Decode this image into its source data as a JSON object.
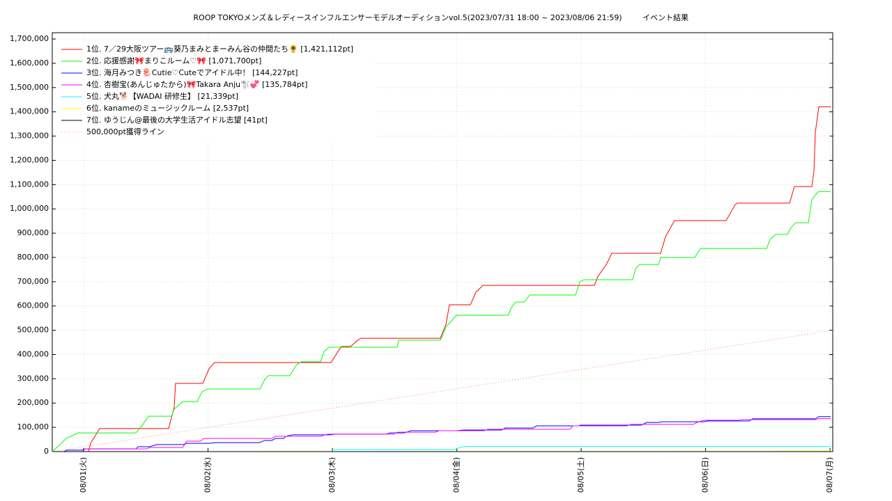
{
  "chart_data": {
    "type": "line",
    "title": "ROOP TOKYOメンズ＆レディースインフルエンサーモデルオーディションvol.5(2023/07/31 18:00 ~ 2023/08/06 21:59)",
    "subtitle": "イベント結果",
    "xlim": [
      0.748,
      7.022
    ],
    "xticks": [
      {
        "value": 1,
        "label": "08/01(火)"
      },
      {
        "value": 2,
        "label": "08/02(水)"
      },
      {
        "value": 3,
        "label": "08/03(木)"
      },
      {
        "value": 4,
        "label": "08/04(金)"
      },
      {
        "value": 5,
        "label": "08/05(土)"
      },
      {
        "value": 6,
        "label": "08/06(日)"
      },
      {
        "value": 7,
        "label": "08/07(月)"
      }
    ],
    "ylim": [
      0,
      1726000
    ],
    "yticks": [
      0,
      {
        "value": 100000,
        "label": "100,000"
      },
      {
        "value": 200000,
        "label": "200,000"
      },
      {
        "value": 300000,
        "label": "300,000"
      },
      {
        "value": 400000,
        "label": "400,000"
      },
      {
        "value": 500000,
        "label": "500,000"
      },
      {
        "value": 600000,
        "label": "600,000"
      },
      {
        "value": 700000,
        "label": "700,000"
      },
      {
        "value": 800000,
        "label": "800,000"
      },
      {
        "value": 900000,
        "label": "900,000"
      },
      {
        "value": 1000000,
        "label": "1,000,000"
      },
      {
        "value": 1100000,
        "label": "1,100,000"
      },
      {
        "value": 1200000,
        "label": "1,200,000"
      },
      {
        "value": 1300000,
        "label": "1,300,000"
      },
      {
        "value": 1400000,
        "label": "1,400,000"
      },
      {
        "value": 1500000,
        "label": "1,500,000"
      },
      {
        "value": 1600000,
        "label": "1,600,000"
      },
      {
        "value": 1700000,
        "label": "1,700,000"
      }
    ],
    "grid": true,
    "legend": "upper left",
    "series": [
      {
        "name": "1位. 7／29大阪ツアー🚌葵乃まみとまーみん谷の仲間たち🌻 [1,421,112pt]",
        "color": "#ff0000",
        "x": [
          0.748,
          1.039,
          1.056,
          1.129,
          1.683,
          1.728,
          1.739,
          1.958,
          2.008,
          2.053,
          2.989,
          3.045,
          3.073,
          3.146,
          3.196,
          3.23,
          3.868,
          3.913,
          3.941,
          4.109,
          4.154,
          4.21,
          5.106,
          5.134,
          5.202,
          5.246,
          5.638,
          5.678,
          5.75,
          6.165,
          6.238,
          6.255,
          6.675,
          6.714,
          6.854,
          6.871,
          6.882,
          6.91,
          7.005
        ],
        "values": [
          0,
          0,
          34000,
          95000,
          95000,
          183000,
          281000,
          281000,
          341000,
          367000,
          367000,
          413000,
          433000,
          433000,
          456000,
          467000,
          467000,
          525000,
          605000,
          605000,
          657000,
          685000,
          685000,
          722000,
          771000,
          817000,
          817000,
          886000,
          952000,
          952000,
          1018000,
          1024000,
          1024000,
          1092000,
          1092000,
          1158000,
          1316000,
          1421112,
          1421112
        ]
      },
      {
        "name": "2位. 応援感謝🎀まりこルーム♡🎀 [1,071,700pt]",
        "color": "#00ff00",
        "x": [
          0.748,
          0.804,
          0.86,
          0.955,
          1.42,
          1.476,
          1.521,
          1.706,
          1.728,
          1.796,
          1.913,
          1.952,
          1.997,
          2.417,
          2.457,
          2.485,
          2.658,
          2.709,
          2.748,
          2.905,
          2.933,
          2.972,
          3.521,
          3.532,
          3.868,
          3.913,
          3.997,
          4.412,
          4.445,
          4.473,
          4.541,
          4.585,
          4.955,
          4.989,
          5.022,
          5.414,
          5.437,
          5.47,
          5.622,
          5.638,
          5.913,
          5.958,
          6.49,
          6.518,
          6.563,
          6.658,
          6.686,
          6.725,
          6.826,
          6.854,
          6.893,
          6.91,
          7.005
        ],
        "values": [
          0,
          26000,
          54000,
          77000,
          77000,
          112000,
          146000,
          146000,
          175000,
          206000,
          206000,
          247000,
          258000,
          258000,
          298000,
          313000,
          313000,
          356000,
          370000,
          370000,
          413000,
          430000,
          430000,
          459000,
          459000,
          513000,
          562000,
          562000,
          599000,
          616000,
          616000,
          645000,
          645000,
          700000,
          708000,
          708000,
          754000,
          771000,
          771000,
          800000,
          800000,
          837000,
          837000,
          874000,
          895000,
          895000,
          923000,
          943000,
          943000,
          1038000,
          1064000,
          1071700,
          1071700
        ]
      },
      {
        "name": "3位. 海月みつき🪼Cutie♡Cuteでアイドル中！ [144,227pt]",
        "color": "#0000ff",
        "x": [
          0.748,
          0.843,
          0.866,
          0.989,
          1.011,
          1.42,
          1.437,
          1.532,
          1.588,
          1.801,
          1.829,
          2.008,
          2.064,
          2.412,
          2.457,
          2.513,
          2.541,
          2.608,
          2.625,
          2.681,
          2.989,
          3.017,
          3.437,
          3.465,
          3.577,
          3.633,
          3.997,
          4.053,
          4.361,
          4.389,
          4.613,
          4.641,
          4.977,
          4.994,
          5.482,
          5.526,
          5.622,
          5.65,
          5.986,
          6.014,
          6.35,
          6.378,
          6.882,
          6.91,
          7.005
        ],
        "values": [
          0,
          0,
          6000,
          6000,
          11000,
          11000,
          20000,
          20000,
          29000,
          29000,
          34000,
          34000,
          37000,
          37000,
          46000,
          46000,
          54000,
          54000,
          63000,
          69000,
          69000,
          72000,
          72000,
          77000,
          77000,
          86000,
          86000,
          89000,
          89000,
          97000,
          97000,
          106000,
          106000,
          109000,
          109000,
          120000,
          120000,
          123000,
          123000,
          126000,
          126000,
          135000,
          135000,
          144227,
          144227
        ]
      },
      {
        "name": "4位. 杏樹宝(あんじゅたから)🎀Takara Anju🐩💞 [135,784pt]",
        "color": "#ff00ff",
        "x": [
          0.748,
          0.989,
          1.011,
          1.504,
          1.532,
          1.796,
          1.829,
          1.941,
          1.964,
          2.513,
          2.541,
          2.905,
          2.961,
          3.493,
          3.521,
          3.829,
          3.857,
          4.221,
          4.249,
          4.91,
          4.933,
          5.37,
          5.398,
          5.902,
          5.93,
          5.986,
          6.266,
          6.294,
          6.882,
          6.91,
          7.005
        ],
        "values": [
          0,
          0,
          11000,
          11000,
          17000,
          17000,
          43000,
          43000,
          54000,
          54000,
          63000,
          63000,
          72000,
          72000,
          80000,
          80000,
          86000,
          86000,
          92000,
          92000,
          106000,
          106000,
          112000,
          112000,
          120000,
          129000,
          129000,
          132000,
          132000,
          135784,
          135784
        ]
      },
      {
        "name": "5位. 犬丸🐕【WADAI 研修生】 [21,339pt]",
        "color": "#00ffff",
        "x": [
          0.748,
          2.989,
          3.006,
          3.98,
          4.025,
          4.081,
          7.005
        ],
        "values": [
          0,
          0,
          8600,
          8600,
          17000,
          21339,
          21339
        ]
      },
      {
        "name": "6位. kanameのミュージックルーム [2,537pt]",
        "color": "#ffff00",
        "x": [
          0.748,
          6.5,
          7.005
        ],
        "values": [
          0,
          1000,
          2537
        ]
      },
      {
        "name": "7位. ゆうじん@最後の大学生活アイドル志望 [41pt]",
        "color": "#000000",
        "x": [
          0.748,
          7.005
        ],
        "values": [
          0,
          41
        ]
      },
      {
        "name": "500,000pt獲得ライン",
        "color": "#ff8080",
        "style": "dotted",
        "x": [
          0.748,
          7.022
        ],
        "values": [
          0,
          500000
        ]
      }
    ]
  }
}
